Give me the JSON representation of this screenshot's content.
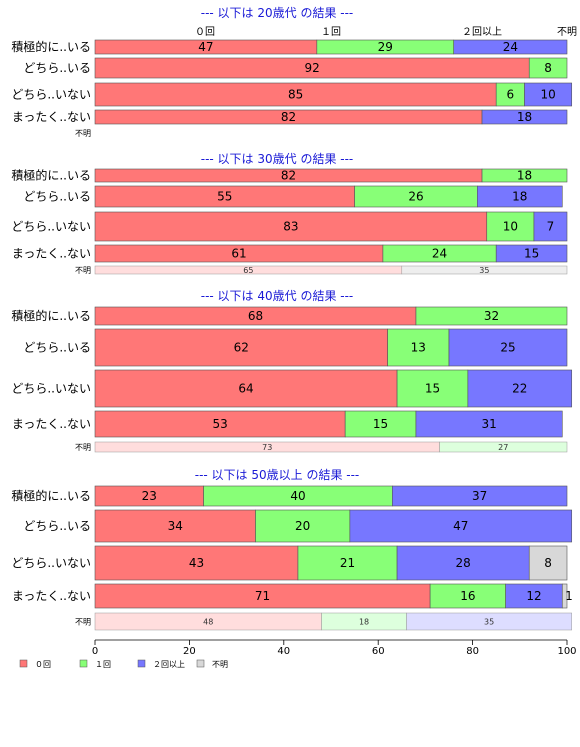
{
  "colors": {
    "s0": "#ff7777",
    "s1": "#88ff77",
    "s2": "#7777ff",
    "s3": "#d8d8d8",
    "s0_light": "#ffdddd",
    "s1_light": "#ddffdd",
    "s2_light": "#ddddff",
    "s3_light": "#eeeeee",
    "title": "#1a1ad6"
  },
  "chart_data": {
    "type": "bar",
    "orientation": "horizontal",
    "stacked": "percent",
    "series_names": [
      "０回",
      "１回",
      "２回以上",
      "不明"
    ],
    "header_labels": [
      {
        "text": "０回",
        "at": 0
      },
      {
        "text": "１回",
        "at": 50
      },
      {
        "text": "２回以上",
        "at": 82
      },
      {
        "text": "不明",
        "at": 100
      }
    ],
    "xlim": [
      0,
      100
    ],
    "xticks": [
      0,
      20,
      40,
      60,
      80,
      100
    ],
    "legend_position": "bottom-left",
    "panels": [
      {
        "title": "--- 以下は 20歳代 の結果 ---",
        "rows": [
          {
            "label": "積極的に..いる",
            "values": [
              47,
              29,
              24,
              0
            ]
          },
          {
            "label": "どちら..いる",
            "values": [
              92,
              8,
              0,
              0
            ]
          },
          {
            "label": "どちら..いない",
            "values": [
              85,
              6,
              10,
              0
            ]
          },
          {
            "label": "まったく..ない",
            "values": [
              82,
              0,
              18,
              0
            ]
          },
          {
            "label": "不明",
            "values": [
              0,
              0,
              0,
              0
            ],
            "small": true
          }
        ]
      },
      {
        "title": "--- 以下は 30歳代 の結果 ---",
        "rows": [
          {
            "label": "積極的に..いる",
            "values": [
              82,
              18,
              0,
              0
            ]
          },
          {
            "label": "どちら..いる",
            "values": [
              55,
              26,
              18,
              0
            ]
          },
          {
            "label": "どちら..いない",
            "values": [
              83,
              10,
              7,
              0
            ]
          },
          {
            "label": "まったく..ない",
            "values": [
              61,
              24,
              15,
              0
            ]
          },
          {
            "label": "不明",
            "values": [
              65,
              0,
              0,
              35
            ],
            "small": true
          }
        ]
      },
      {
        "title": "--- 以下は 40歳代 の結果 ---",
        "rows": [
          {
            "label": "積極的に..いる",
            "values": [
              68,
              32,
              0,
              0
            ]
          },
          {
            "label": "どちら..いる",
            "values": [
              62,
              13,
              25,
              0
            ]
          },
          {
            "label": "どちら..いない",
            "values": [
              64,
              15,
              22,
              0
            ]
          },
          {
            "label": "まったく..ない",
            "values": [
              53,
              15,
              31,
              0
            ]
          },
          {
            "label": "不明",
            "values": [
              73,
              27,
              0,
              0
            ],
            "small": true
          }
        ]
      },
      {
        "title": "--- 以下は 50歳以上 の結果 ---",
        "rows": [
          {
            "label": "積極的に..いる",
            "values": [
              23,
              40,
              37,
              0
            ]
          },
          {
            "label": "どちら..いる",
            "values": [
              34,
              20,
              47,
              0
            ]
          },
          {
            "label": "どちら..いない",
            "values": [
              43,
              21,
              28,
              8
            ]
          },
          {
            "label": "まったく..ない",
            "values": [
              71,
              16,
              12,
              1
            ]
          },
          {
            "label": "不明",
            "values": [
              48,
              18,
              35,
              0
            ],
            "small": true
          }
        ]
      }
    ]
  }
}
